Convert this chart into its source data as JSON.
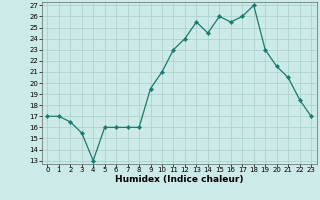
{
  "x": [
    0,
    1,
    2,
    3,
    4,
    5,
    6,
    7,
    8,
    9,
    10,
    11,
    12,
    13,
    14,
    15,
    16,
    17,
    18,
    19,
    20,
    21,
    22,
    23
  ],
  "y": [
    17,
    17,
    16.5,
    15.5,
    13,
    16,
    16,
    16,
    16,
    19.5,
    21,
    23,
    24,
    25.5,
    24.5,
    26,
    25.5,
    26,
    27,
    23,
    21.5,
    20.5,
    18.5,
    17
  ],
  "line_color": "#1a7a6e",
  "marker_color": "#1a7a6e",
  "bg_color": "#cceae7",
  "grid_color": "#aed4d0",
  "xlabel": "Humidex (Indice chaleur)",
  "ylim": [
    13,
    27
  ],
  "xlim": [
    -0.5,
    23.5
  ],
  "yticks": [
    13,
    14,
    15,
    16,
    17,
    18,
    19,
    20,
    21,
    22,
    23,
    24,
    25,
    26,
    27
  ],
  "xticks": [
    0,
    1,
    2,
    3,
    4,
    5,
    6,
    7,
    8,
    9,
    10,
    11,
    12,
    13,
    14,
    15,
    16,
    17,
    18,
    19,
    20,
    21,
    22,
    23
  ],
  "xlabel_fontsize": 6.5,
  "tick_fontsize": 5
}
